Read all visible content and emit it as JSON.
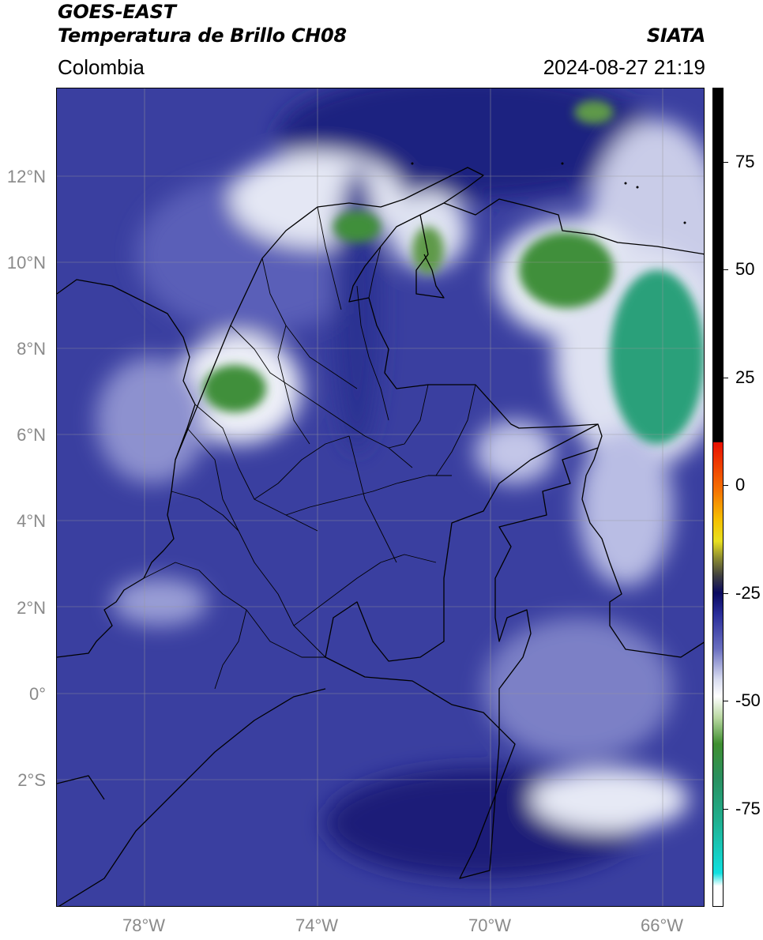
{
  "header": {
    "satellite": "GOES-EAST",
    "product": "Temperatura de Brillo CH08",
    "region": "Colombia",
    "source": "SIATA",
    "datetime": "2024-08-27 21:19"
  },
  "map": {
    "lon_range": [
      -80,
      -65
    ],
    "lat_range": [
      -5,
      14
    ],
    "lat_ticks": [
      "12°N",
      "10°N",
      "8°N",
      "6°N",
      "4°N",
      "2°N",
      "0°",
      "2°S"
    ],
    "lon_ticks": [
      "78°W",
      "74°W",
      "70°W",
      "66°W"
    ],
    "grid": true,
    "colors": {
      "background_blue": "#3a3fa0",
      "deep_blue": "#1e2280",
      "cold_white": "#e8ecf5",
      "cloud_green": "#3f8f3a",
      "deep_convection_teal": "#2aa07a",
      "borders": "#000000"
    }
  },
  "colorbar": {
    "range": [
      -100,
      90
    ],
    "ticks": [
      "75",
      "50",
      "25",
      "0",
      "-25",
      "-50",
      "-75"
    ],
    "stops": [
      {
        "v": 90,
        "c": "#000000"
      },
      {
        "v": 8,
        "c": "#000000"
      },
      {
        "v": 7.9,
        "c": "#e81000"
      },
      {
        "v": -3,
        "c": "#f57000"
      },
      {
        "v": -10,
        "c": "#f5c000"
      },
      {
        "v": -15,
        "c": "#e8e020"
      },
      {
        "v": -19,
        "c": "#8a8a30"
      },
      {
        "v": -23,
        "c": "#404040"
      },
      {
        "v": -27,
        "c": "#0a0a60"
      },
      {
        "v": -32,
        "c": "#2a2e9a"
      },
      {
        "v": -40,
        "c": "#6a6fc0"
      },
      {
        "v": -47,
        "c": "#d8dcf0"
      },
      {
        "v": -51,
        "c": "#ffffff"
      },
      {
        "v": -56,
        "c": "#b8d8a0"
      },
      {
        "v": -62,
        "c": "#3f8f30"
      },
      {
        "v": -70,
        "c": "#2a9060"
      },
      {
        "v": -80,
        "c": "#20b090"
      },
      {
        "v": -92,
        "c": "#10e0e0"
      },
      {
        "v": -95,
        "c": "#ffffff"
      },
      {
        "v": -100,
        "c": "#ffffff"
      }
    ]
  }
}
